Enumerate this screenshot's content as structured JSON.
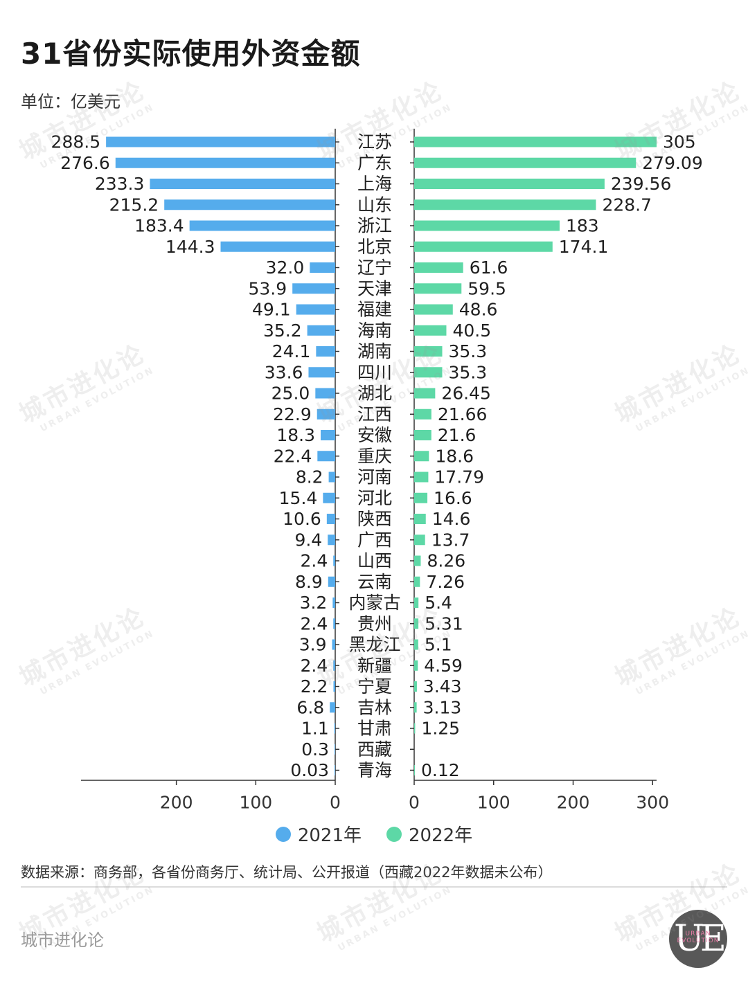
{
  "title": "31省份实际使用外资金额",
  "unit": "单位：亿美元",
  "colors": {
    "series_2021": "#55acec",
    "series_2022": "#5dd8a6",
    "axis": "#333333"
  },
  "legend": [
    {
      "label": "2021年",
      "color": "#55acec"
    },
    {
      "label": "2022年",
      "color": "#5dd8a6"
    }
  ],
  "source": "数据来源：商务部，各省份商务厅、统计局、公开报道（西藏2022年数据未公布）",
  "brand": "城市进化论",
  "logo": {
    "letters": "UE",
    "small_text": "URBAN EVOLUTION"
  },
  "watermark": {
    "cn": "城市进化论",
    "en": "URBAN EVOLUTION"
  },
  "chart_data": {
    "type": "bar",
    "orientation": "horizontal-butterfly",
    "categories": [
      "江苏",
      "广东",
      "上海",
      "山东",
      "浙江",
      "北京",
      "辽宁",
      "天津",
      "福建",
      "海南",
      "湖南",
      "四川",
      "湖北",
      "江西",
      "安徽",
      "重庆",
      "河南",
      "河北",
      "陕西",
      "广西",
      "山西",
      "云南",
      "内蒙古",
      "贵州",
      "黑龙江",
      "新疆",
      "宁夏",
      "吉林",
      "甘肃",
      "西藏",
      "青海"
    ],
    "series": [
      {
        "name": "2021年",
        "side": "left",
        "values": [
          288.5,
          276.6,
          233.3,
          215.2,
          183.4,
          144.3,
          32.0,
          53.9,
          49.1,
          35.2,
          24.1,
          33.6,
          25.0,
          22.9,
          18.3,
          22.4,
          8.2,
          15.4,
          10.6,
          9.4,
          2.4,
          8.9,
          3.2,
          2.4,
          3.9,
          2.4,
          2.2,
          6.8,
          1.1,
          0.3,
          0.03
        ],
        "labels": [
          "288.5",
          "276.6",
          "233.3",
          "215.2",
          "183.4",
          "144.3",
          "32.0",
          "53.9",
          "49.1",
          "35.2",
          "24.1",
          "33.6",
          "25.0",
          "22.9",
          "18.3",
          "22.4",
          "8.2",
          "15.4",
          "10.6",
          "9.4",
          "2.4",
          "8.9",
          "3.2",
          "2.4",
          "3.9",
          "2.4",
          "2.2",
          "6.8",
          "1.1",
          "0.3",
          "0.03"
        ]
      },
      {
        "name": "2022年",
        "side": "right",
        "values": [
          305,
          279.09,
          239.56,
          228.7,
          183,
          174.1,
          61.6,
          59.5,
          48.6,
          40.5,
          35.3,
          35.3,
          26.45,
          21.66,
          21.6,
          18.6,
          17.79,
          16.6,
          14.6,
          13.7,
          8.26,
          7.26,
          5.4,
          5.31,
          5.1,
          4.59,
          3.43,
          3.13,
          1.25,
          null,
          0.12
        ],
        "labels": [
          "305",
          "279.09",
          "239.56",
          "228.7",
          "183",
          "174.1",
          "61.6",
          "59.5",
          "48.6",
          "40.5",
          "35.3",
          "35.3",
          "26.45",
          "21.66",
          "21.6",
          "18.6",
          "17.79",
          "16.6",
          "14.6",
          "13.7",
          "8.26",
          "7.26",
          "5.4",
          "5.31",
          "5.1",
          "4.59",
          "3.43",
          "3.13",
          "1.25",
          "",
          "0.12"
        ]
      }
    ],
    "x_ticks_left": [
      {
        "value": 200,
        "label": "200"
      },
      {
        "value": 100,
        "label": "100"
      },
      {
        "value": 0,
        "label": "0"
      }
    ],
    "x_ticks_right": [
      {
        "value": 0,
        "label": "0"
      },
      {
        "value": 100,
        "label": "100"
      },
      {
        "value": 200,
        "label": "200"
      },
      {
        "value": 300,
        "label": "300"
      }
    ],
    "xlim_left": [
      0,
      320
    ],
    "xlim_right": [
      0,
      305
    ],
    "grid": false,
    "legend_position": "bottom-center"
  }
}
